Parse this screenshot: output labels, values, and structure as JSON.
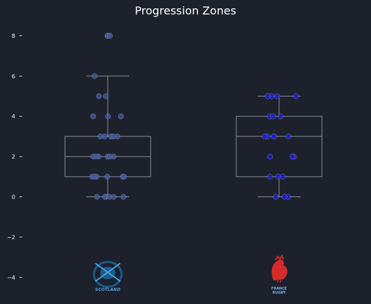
{
  "chart_data": {
    "type": "box",
    "title": "Progression Zones",
    "xlabel": "",
    "ylabel": "",
    "ylim": [
      -5,
      8.5
    ],
    "yticks": [
      8,
      6,
      4,
      2,
      0,
      -2,
      -4
    ],
    "yticklabels": [
      "8",
      "6",
      "4",
      "2",
      "0",
      "−2",
      "−4"
    ],
    "grid": false,
    "groups": [
      {
        "team": "Scotland",
        "logo_text": "SCOTLAND",
        "point_color": "#3f5a9a",
        "box": {
          "q1": 1,
          "median": 2,
          "q3": 3,
          "whisker_low": 0,
          "whisker_high": 6
        },
        "outliers": [
          8
        ],
        "values": [
          8,
          8,
          6,
          5,
          5,
          4,
          4,
          4,
          3,
          3,
          3,
          3,
          3,
          2,
          2,
          2,
          2,
          2,
          2,
          1,
          1,
          1,
          1,
          1,
          1,
          0,
          0,
          0,
          0,
          0,
          0
        ]
      },
      {
        "team": "France",
        "logo_text": "FRANCE RUGBY",
        "point_color": "#1a1ad6",
        "box": {
          "q1": 1,
          "median": 3,
          "q3": 4,
          "whisker_low": 0,
          "whisker_high": 5
        },
        "outliers": [],
        "values": [
          5,
          5,
          5,
          5,
          4,
          4,
          4,
          3,
          3,
          3,
          3,
          3,
          2,
          2,
          2,
          1,
          1,
          1,
          0,
          0,
          0
        ]
      }
    ]
  },
  "colors": {
    "background": "#1c212b",
    "box_line": "#8a8f99",
    "text": "#ffffff",
    "scotland_logo": "#1a5b8c",
    "france_logo": "#d42a2a"
  }
}
